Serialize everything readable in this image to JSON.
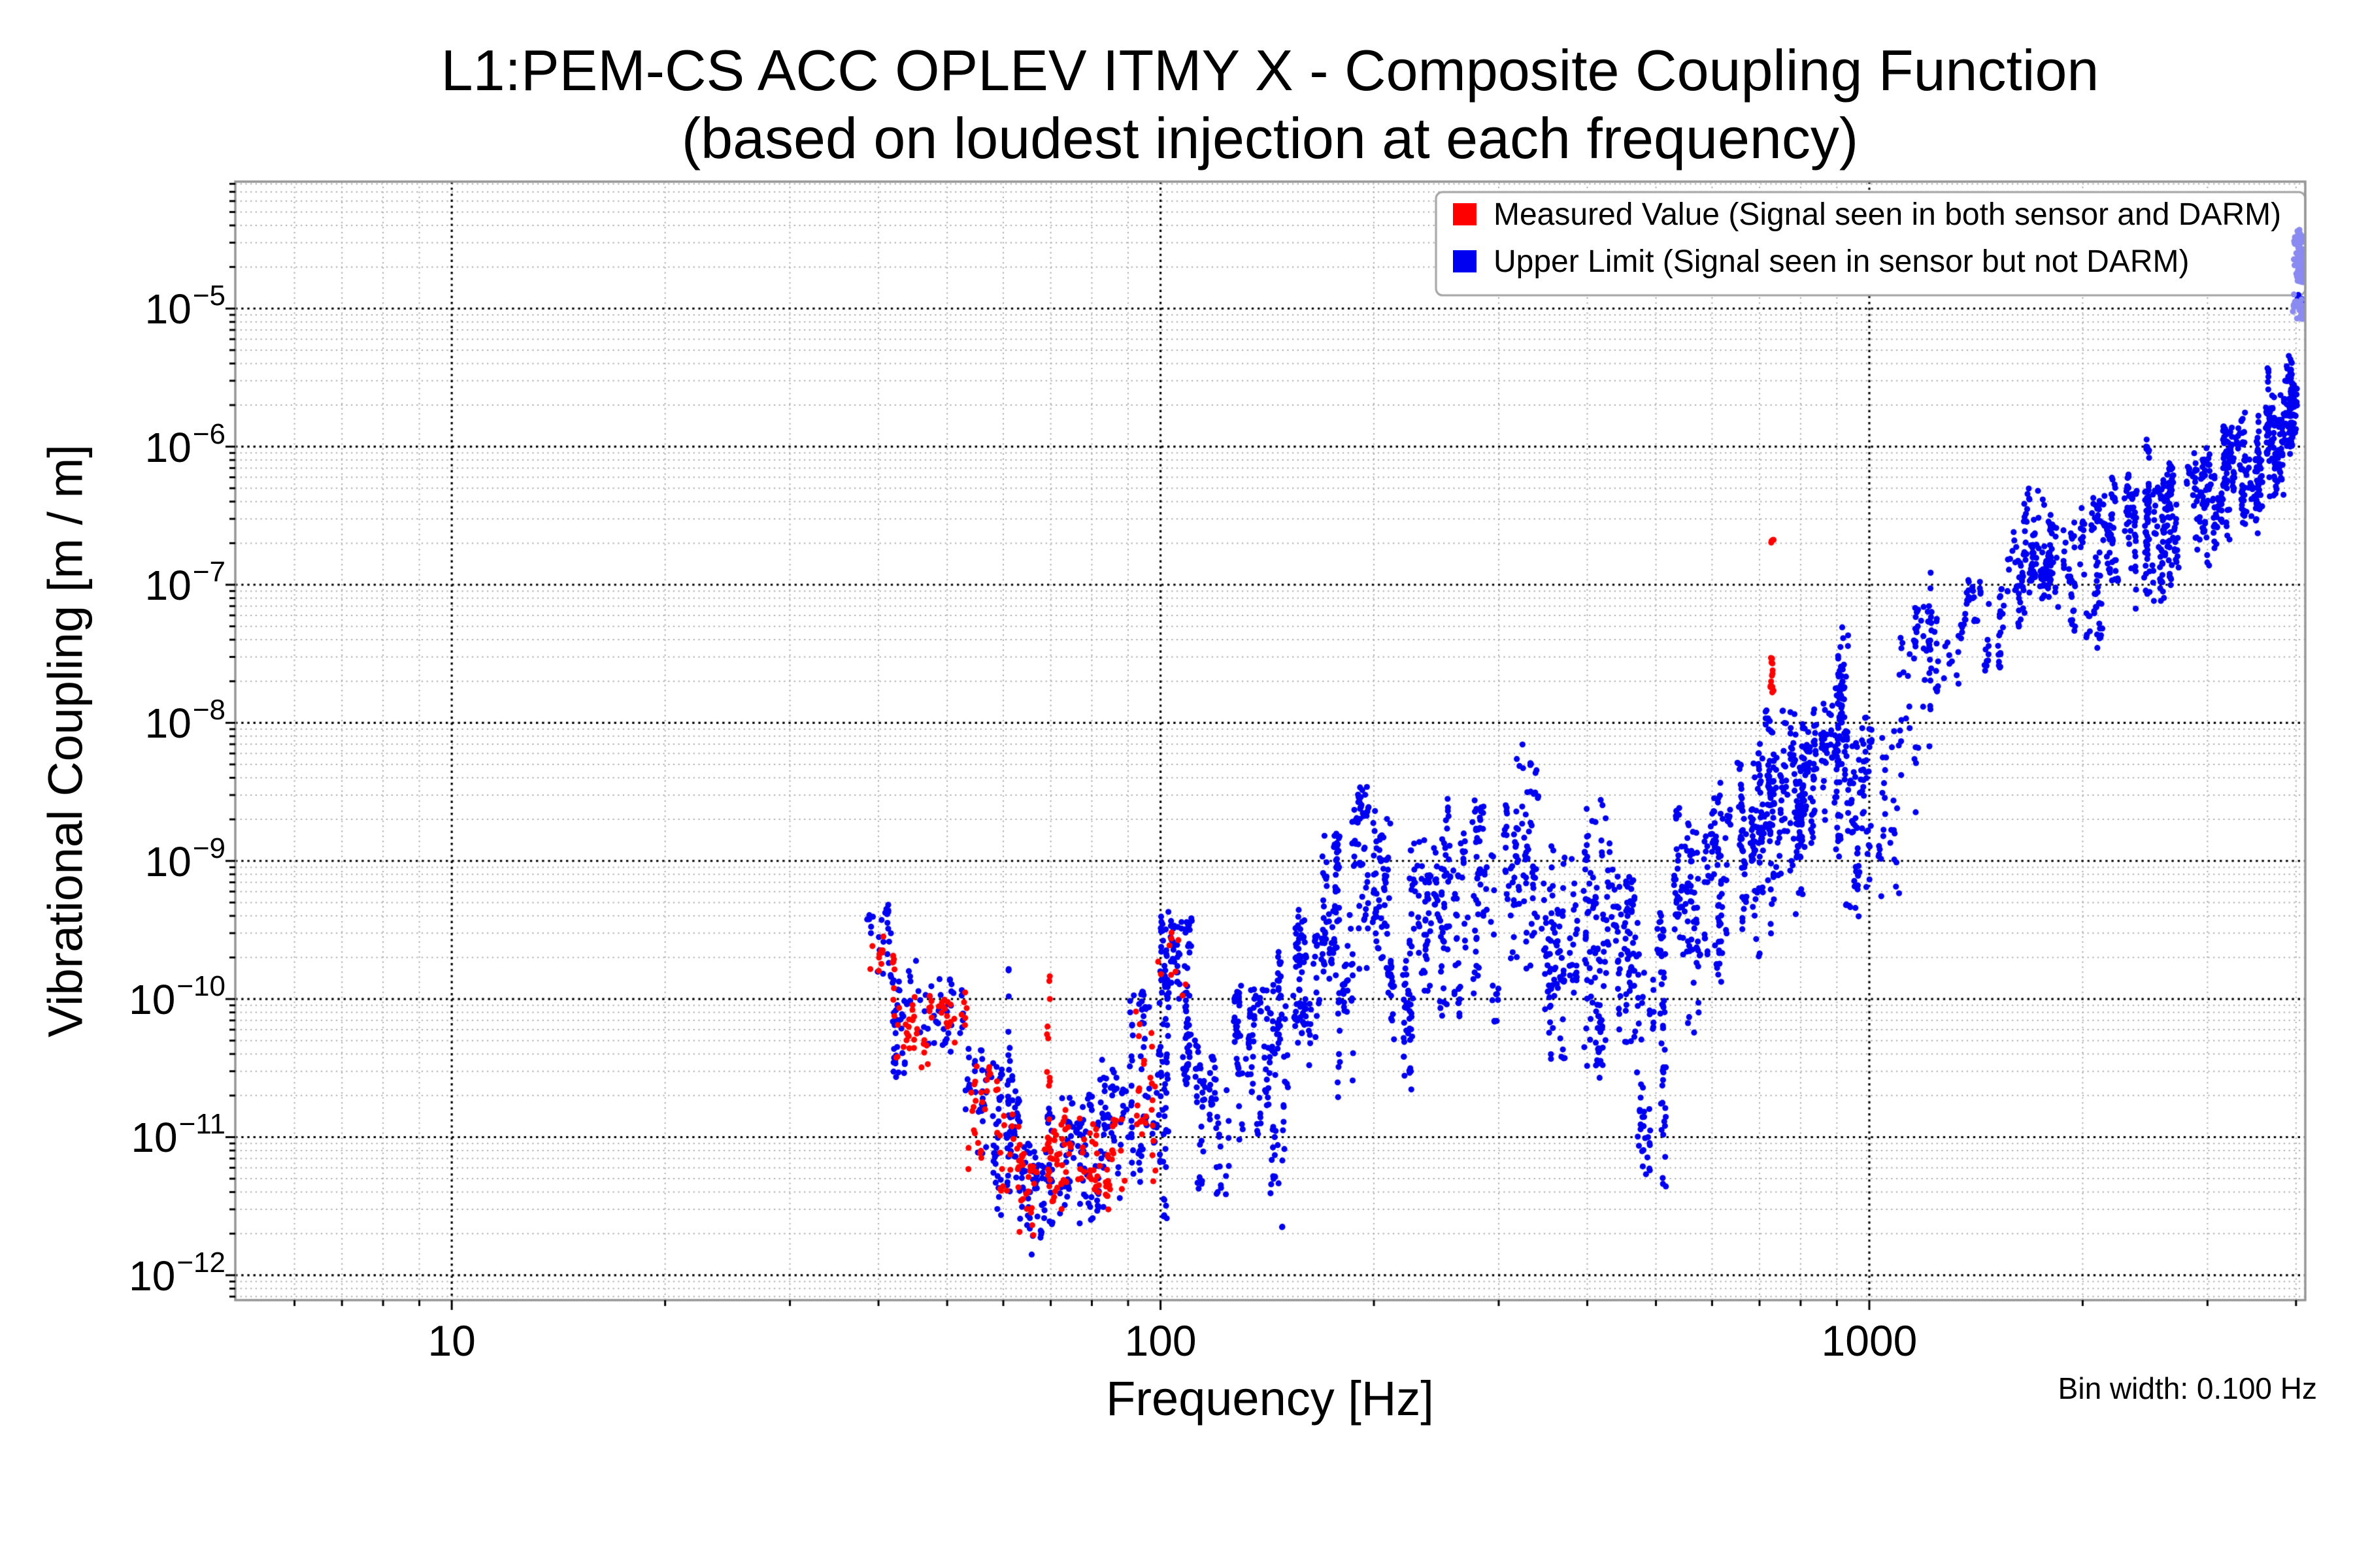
{
  "figure": {
    "title_line1": "L1:PEM-CS ACC OPLEV ITMY X - Composite Coupling Function",
    "title_line2": "(based on loudest injection at each frequency)",
    "xlabel": "Frequency [Hz]",
    "ylabel": "Vibrational Coupling [m / m]",
    "bin_width_note": "Bin width: 0.100 Hz"
  },
  "chart_data": {
    "type": "scatter",
    "title": "L1:PEM-CS ACC OPLEV ITMY X - Composite Coupling Function (based on loudest injection at each frequency)",
    "xlabel": "Frequency [Hz]",
    "ylabel": "Vibrational Coupling [m / m]",
    "x_scale": "log",
    "y_scale": "log",
    "xlim": [
      4.95,
      4122
    ],
    "ylim": [
      6.6e-13,
      8.3e-05
    ],
    "grid": {
      "major": true,
      "minor": true,
      "major_style": "black dotted",
      "minor_style": "gray dotted"
    },
    "x_ticks": [
      {
        "value": 10,
        "label": "10"
      },
      {
        "value": 100,
        "label": "100"
      },
      {
        "value": 1000,
        "label": "1000"
      }
    ],
    "y_ticks": [
      {
        "value": 1e-05,
        "base": "10",
        "exponent": "−5"
      },
      {
        "value": 1e-06,
        "base": "10",
        "exponent": "−6"
      },
      {
        "value": 1e-07,
        "base": "10",
        "exponent": "−7"
      },
      {
        "value": 1e-08,
        "base": "10",
        "exponent": "−8"
      },
      {
        "value": 1e-09,
        "base": "10",
        "exponent": "−9"
      },
      {
        "value": 1e-10,
        "base": "10",
        "exponent": "−10"
      },
      {
        "value": 1e-11,
        "base": "10",
        "exponent": "−11"
      },
      {
        "value": 1e-12,
        "base": "10",
        "exponent": "−12"
      }
    ],
    "legend": {
      "position": "upper right",
      "entries": [
        {
          "key": "measured",
          "label": "Measured Value (Signal seen in both sensor and DARM)",
          "color": "#ff0000"
        },
        {
          "key": "upper_limit",
          "label": "Upper Limit (Signal seen in sensor but not DARM)",
          "color": "#0000f0"
        }
      ]
    },
    "colors": {
      "measured": "#ff0000",
      "upper_limit": "#0000f0",
      "upper_limit_light": "#8a8af0",
      "grid_major": "#000000",
      "grid_minor": "#ababab",
      "spine": "#969696",
      "legend_border": "#a3a3a3"
    },
    "marker": {
      "shape": "circle",
      "radius_px": 4.6
    },
    "bin_width_hz": 0.1,
    "seed": 20240612,
    "notable_features": [
      "No data below ~38 Hz; measured (red) and upper-limit (blue) points interleave from ~38 Hz to ~112 Hz between ~1e-12 and ~5e-10",
      "Global minimum ~1.2e-12 m/m near 65 Hz",
      "Tall blue columns at 100 Hz reaching ~5e-10",
      "Red measured streak at ~729 Hz spanning ~1.7e-8 to 2.8e-8 plus isolated red pair at ~2.1e-7",
      "Broadband blue upper limit rises from ~1e-11 near 120 Hz to ~1e-6 near 3000 Hz with deep notches (e.g. ~3e-12 near 480 Hz)",
      "Sparse columns between 1000 and 1450 Hz (~4e-10 to 1.2e-7)",
      "Blue spikes to ~1.2e-6 at ~2470 Hz and ~3.9e-6 at ~3650 Hz",
      "Light-blue saturated column at ~4000 Hz reaching ~4e-5 overlapping the legend's lower-right corner"
    ],
    "envelope_upper_limit": [
      [
        38.5,
        42,
        -10.05,
        -9.32,
        26,
        9
      ],
      [
        42,
        47,
        -10.65,
        -9.7,
        40,
        12
      ],
      [
        47,
        53,
        -10.45,
        -9.85,
        36,
        12
      ],
      [
        53,
        59,
        -11.35,
        -10.3,
        40,
        12
      ],
      [
        59,
        63,
        -11.65,
        -10.35,
        44,
        10
      ],
      [
        63,
        68,
        -11.95,
        -11.05,
        40,
        12
      ],
      [
        68,
        71,
        -11.65,
        -10.7,
        22,
        7
      ],
      [
        71,
        80,
        -11.75,
        -10.65,
        60,
        14
      ],
      [
        80,
        90,
        -11.6,
        -10.45,
        55,
        13
      ],
      [
        90,
        99,
        -11.45,
        -9.95,
        60,
        12
      ],
      [
        99,
        102.5,
        -11.75,
        -9.3,
        70,
        6
      ],
      [
        102.5,
        112,
        -10.65,
        -9.42,
        80,
        12
      ],
      [
        112,
        124,
        -11.55,
        -10.3,
        60,
        11
      ],
      [
        124,
        142,
        -11.05,
        -9.9,
        85,
        13
      ],
      [
        142,
        152,
        -11.75,
        -9.65,
        65,
        9
      ],
      [
        152,
        168,
        -10.55,
        -9.3,
        80,
        12
      ],
      [
        168,
        178,
        -10.05,
        -8.8,
        70,
        11
      ],
      [
        178,
        186,
        -10.85,
        -9.35,
        35,
        7
      ],
      [
        186,
        210,
        -9.95,
        -8.45,
        100,
        14
      ],
      [
        210,
        226,
        -10.72,
        -9.5,
        60,
        9
      ],
      [
        226,
        250,
        -10.2,
        -8.75,
        80,
        12
      ],
      [
        250,
        300,
        -10.35,
        -8.55,
        120,
        18
      ],
      [
        300,
        340,
        -9.95,
        -8.12,
        90,
        13
      ],
      [
        340,
        390,
        -10.62,
        -8.9,
        95,
        14
      ],
      [
        390,
        432,
        -10.65,
        -8.55,
        95,
        13
      ],
      [
        432,
        470,
        -10.5,
        -9.0,
        70,
        11
      ],
      [
        470,
        520,
        -11.5,
        -9.3,
        85,
        12
      ],
      [
        520,
        580,
        -10.35,
        -8.6,
        90,
        13
      ],
      [
        580,
        640,
        -10.05,
        -8.4,
        80,
        12
      ],
      [
        640,
        700,
        -9.75,
        -8.2,
        80,
        12
      ],
      [
        700,
        726,
        -9.6,
        -7.85,
        50,
        8
      ],
      [
        726,
        732,
        -9.7,
        -7.82,
        26,
        2
      ],
      [
        732,
        800,
        -9.45,
        -7.9,
        85,
        13
      ],
      [
        800,
        860,
        -9.35,
        -7.75,
        80,
        12
      ],
      [
        860,
        905,
        -9.05,
        -7.6,
        65,
        9
      ],
      [
        905,
        930,
        -8.8,
        -7.3,
        45,
        5
      ],
      [
        930,
        1000,
        -9.45,
        -7.95,
        65,
        10
      ],
      [
        1000,
        1100,
        -9.45,
        -8.05,
        34,
        9
      ],
      [
        1100,
        1175,
        -8.75,
        -7.15,
        22,
        5
      ],
      [
        1175,
        1260,
        -8.2,
        -6.92,
        22,
        5
      ],
      [
        1260,
        1340,
        -7.95,
        -7.35,
        10,
        5
      ],
      [
        1340,
        1450,
        -7.48,
        -6.95,
        26,
        7
      ],
      [
        1450,
        1560,
        -7.68,
        -7.02,
        26,
        6
      ],
      [
        1560,
        1660,
        -7.35,
        -6.6,
        36,
        8
      ],
      [
        1660,
        1800,
        -7.18,
        -6.3,
        75,
        12
      ],
      [
        1800,
        1960,
        -7.38,
        -6.5,
        55,
        10
      ],
      [
        1960,
        2150,
        -7.52,
        -6.35,
        58,
        10
      ],
      [
        2150,
        2360,
        -7.05,
        -6.2,
        70,
        11
      ],
      [
        2360,
        2600,
        -7.22,
        -6.28,
        75,
        12
      ],
      [
        2600,
        2850,
        -7.02,
        -6.1,
        80,
        12
      ],
      [
        2850,
        3100,
        -6.92,
        -6.0,
        80,
        12
      ],
      [
        3100,
        3350,
        -6.82,
        -5.85,
        85,
        12
      ],
      [
        3350,
        3600,
        -6.65,
        -5.75,
        85,
        12
      ],
      [
        3600,
        3850,
        -6.52,
        -5.6,
        85,
        12
      ],
      [
        3850,
        3985,
        -6.25,
        -5.35,
        65,
        9
      ],
      [
        3985,
        4055,
        -5.02,
        -4.86,
        24,
        4
      ]
    ],
    "envelope_measured": [
      [
        39,
        42,
        -10.0,
        -9.5,
        16,
        8
      ],
      [
        42,
        47,
        -10.55,
        -9.9,
        26,
        10
      ],
      [
        47,
        53,
        -10.4,
        -9.95,
        24,
        9
      ],
      [
        53,
        59,
        -11.3,
        -10.45,
        26,
        9
      ],
      [
        59,
        63,
        -11.55,
        -10.8,
        16,
        7
      ],
      [
        63,
        68,
        -11.8,
        -11.1,
        20,
        8
      ],
      [
        68,
        71,
        -11.55,
        -10.9,
        12,
        5
      ],
      [
        71,
        80,
        -11.72,
        -10.75,
        42,
        11
      ],
      [
        80,
        90,
        -11.55,
        -10.85,
        30,
        9
      ],
      [
        90,
        99,
        -11.35,
        -10.0,
        22,
        7
      ],
      [
        99,
        112,
        -10.1,
        -9.5,
        7,
        5
      ]
    ],
    "envelope_upper_limit_light": [
      [
        3962,
        4075,
        -4.92,
        -4.44,
        85,
        5
      ],
      [
        3985,
        4068,
        -5.08,
        -4.9,
        26,
        4
      ]
    ],
    "columns": [
      {
        "f": 61,
        "lo": -11.45,
        "hi": -9.75,
        "n": 13,
        "series": "upper_limit"
      },
      {
        "f": 69.5,
        "lo": -11.45,
        "hi": -9.72,
        "n": 16,
        "series": "measured"
      },
      {
        "f": 100.6,
        "lo": -9.65,
        "hi": -9.28,
        "n": 6,
        "series": "upper_limit"
      },
      {
        "f": 729,
        "lo": -7.78,
        "hi": -7.53,
        "n": 13,
        "series": "measured"
      },
      {
        "f": 729,
        "lo": -6.73,
        "hi": -6.65,
        "n": 4,
        "series": "measured"
      },
      {
        "f": 918,
        "lo": -8.2,
        "hi": -7.3,
        "n": 16,
        "series": "upper_limit"
      },
      {
        "f": 1160,
        "lo": -7.55,
        "hi": -7.12,
        "n": 10,
        "series": "upper_limit"
      },
      {
        "f": 1218,
        "lo": -8.2,
        "hi": -6.95,
        "n": 16,
        "series": "upper_limit"
      },
      {
        "f": 2470,
        "lo": -6.75,
        "hi": -5.92,
        "n": 24,
        "series": "upper_limit"
      },
      {
        "f": 3650,
        "lo": -6.08,
        "hi": -5.41,
        "n": 18,
        "series": "upper_limit"
      },
      {
        "f": 3950,
        "lo": -6.0,
        "hi": -5.46,
        "n": 14,
        "series": "upper_limit"
      },
      {
        "f": 4035,
        "lo": -4.76,
        "hi": -4.4,
        "n": 20,
        "series": "upper_limit_light"
      }
    ]
  }
}
